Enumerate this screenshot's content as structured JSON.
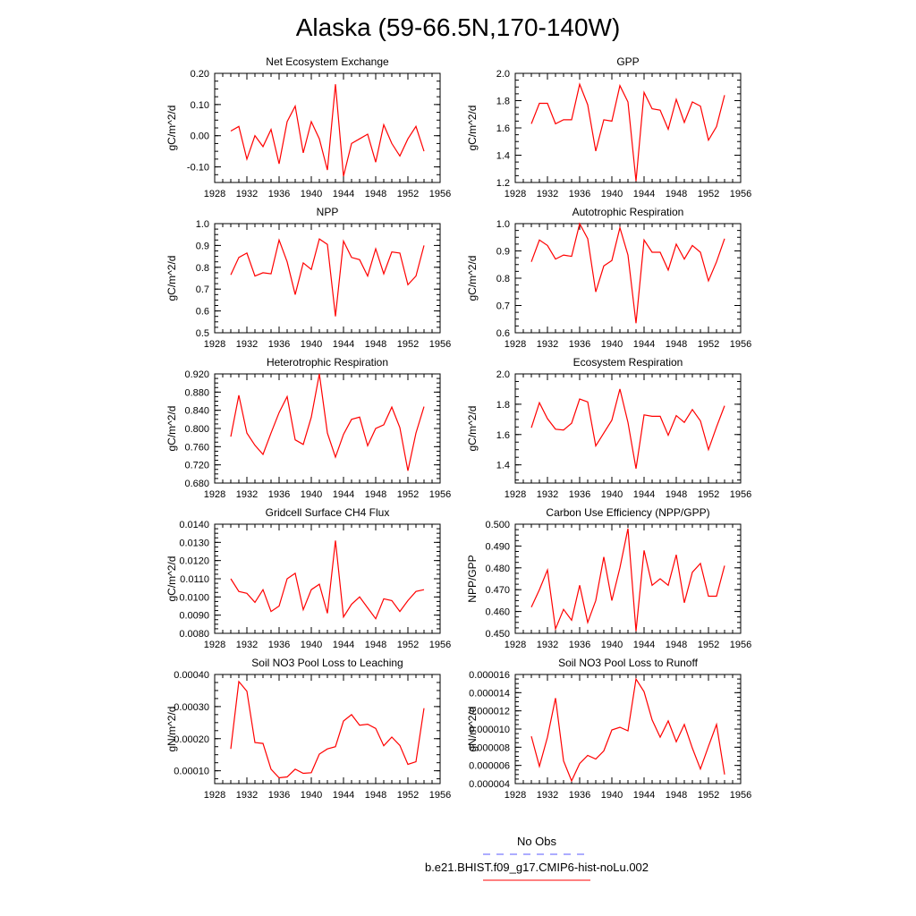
{
  "title": "Alaska (59-66.5N,170-140W)",
  "colors": {
    "model": "#ff0000",
    "obs": "#5a5aff",
    "axis": "#000000"
  },
  "legend": {
    "obs_label": "No Obs",
    "model_label": "b.e21.BHIST.f09_g17.CMIP6-hist-noLu.002"
  },
  "chart_data": [
    {
      "type": "line",
      "title": "Net Ecosystem Exchange",
      "ylabel": "gC/m^2/d",
      "xlim": [
        1928,
        1956
      ],
      "ylim": [
        -0.15,
        0.2
      ],
      "xticks": [
        1928,
        1932,
        1936,
        1940,
        1944,
        1948,
        1952,
        1956
      ],
      "yticks": [
        -0.1,
        0.0,
        0.1,
        0.2
      ],
      "ytick_labels": [
        "-0.10",
        "0.00",
        "0.10",
        "0.20"
      ],
      "x": [
        1930,
        1931,
        1932,
        1933,
        1934,
        1935,
        1936,
        1937,
        1938,
        1939,
        1940,
        1941,
        1942,
        1943,
        1944,
        1945,
        1946,
        1947,
        1948,
        1949,
        1950,
        1951,
        1952,
        1953,
        1954
      ],
      "series": [
        {
          "values": [
            0.015,
            0.03,
            -0.075,
            0.0,
            -0.035,
            0.02,
            -0.09,
            0.045,
            0.095,
            -0.055,
            0.045,
            -0.01,
            -0.11,
            0.165,
            -0.13,
            -0.025,
            -0.01,
            0.005,
            -0.085,
            0.035,
            -0.025,
            -0.065,
            -0.01,
            0.03,
            -0.05
          ]
        }
      ]
    },
    {
      "type": "line",
      "title": "GPP",
      "ylabel": "gC/m^2/d",
      "xlim": [
        1928,
        1956
      ],
      "ylim": [
        1.2,
        2.0
      ],
      "xticks": [
        1928,
        1932,
        1936,
        1940,
        1944,
        1948,
        1952,
        1956
      ],
      "yticks": [
        1.2,
        1.4,
        1.6,
        1.8,
        2.0
      ],
      "ytick_labels": [
        "1.2",
        "1.4",
        "1.6",
        "1.8",
        "2.0"
      ],
      "x": [
        1930,
        1931,
        1932,
        1933,
        1934,
        1935,
        1936,
        1937,
        1938,
        1939,
        1940,
        1941,
        1942,
        1943,
        1944,
        1945,
        1946,
        1947,
        1948,
        1949,
        1950,
        1951,
        1952,
        1953,
        1954
      ],
      "series": [
        {
          "values": [
            1.63,
            1.78,
            1.78,
            1.63,
            1.66,
            1.66,
            1.92,
            1.77,
            1.43,
            1.66,
            1.65,
            1.91,
            1.79,
            1.21,
            1.86,
            1.74,
            1.73,
            1.59,
            1.81,
            1.64,
            1.79,
            1.76,
            1.51,
            1.61,
            1.84
          ]
        }
      ]
    },
    {
      "type": "line",
      "title": "NPP",
      "ylabel": "gC/m^2/d",
      "xlim": [
        1928,
        1956
      ],
      "ylim": [
        0.5,
        1.0
      ],
      "xticks": [
        1928,
        1932,
        1936,
        1940,
        1944,
        1948,
        1952,
        1956
      ],
      "yticks": [
        0.5,
        0.6,
        0.7,
        0.8,
        0.9,
        1.0
      ],
      "ytick_labels": [
        "0.5",
        "0.6",
        "0.7",
        "0.8",
        "0.9",
        "1.0"
      ],
      "x": [
        1930,
        1931,
        1932,
        1933,
        1934,
        1935,
        1936,
        1937,
        1938,
        1939,
        1940,
        1941,
        1942,
        1943,
        1944,
        1945,
        1946,
        1947,
        1948,
        1949,
        1950,
        1951,
        1952,
        1953,
        1954
      ],
      "series": [
        {
          "values": [
            0.765,
            0.845,
            0.865,
            0.76,
            0.775,
            0.77,
            0.925,
            0.825,
            0.675,
            0.82,
            0.79,
            0.93,
            0.905,
            0.575,
            0.92,
            0.845,
            0.835,
            0.76,
            0.885,
            0.77,
            0.87,
            0.865,
            0.72,
            0.76,
            0.9
          ]
        }
      ]
    },
    {
      "type": "line",
      "title": "Autotrophic Respiration",
      "ylabel": "gC/m^2/d",
      "xlim": [
        1928,
        1956
      ],
      "ylim": [
        0.6,
        1.0
      ],
      "xticks": [
        1928,
        1932,
        1936,
        1940,
        1944,
        1948,
        1952,
        1956
      ],
      "yticks": [
        0.6,
        0.7,
        0.8,
        0.9,
        1.0
      ],
      "ytick_labels": [
        "0.6",
        "0.7",
        "0.8",
        "0.9",
        "1.0"
      ],
      "x": [
        1930,
        1931,
        1932,
        1933,
        1934,
        1935,
        1936,
        1937,
        1938,
        1939,
        1940,
        1941,
        1942,
        1943,
        1944,
        1945,
        1946,
        1947,
        1948,
        1949,
        1950,
        1951,
        1952,
        1953,
        1954
      ],
      "series": [
        {
          "values": [
            0.86,
            0.94,
            0.92,
            0.87,
            0.885,
            0.88,
            1.0,
            0.945,
            0.75,
            0.845,
            0.865,
            0.985,
            0.885,
            0.635,
            0.94,
            0.895,
            0.895,
            0.83,
            0.925,
            0.87,
            0.92,
            0.895,
            0.79,
            0.86,
            0.945
          ]
        }
      ]
    },
    {
      "type": "line",
      "title": "Heterotrophic Respiration",
      "ylabel": "gC/m^2/d",
      "xlim": [
        1928,
        1956
      ],
      "ylim": [
        0.68,
        0.92
      ],
      "xticks": [
        1928,
        1932,
        1936,
        1940,
        1944,
        1948,
        1952,
        1956
      ],
      "yticks": [
        0.68,
        0.72,
        0.76,
        0.8,
        0.84,
        0.88,
        0.92
      ],
      "ytick_labels": [
        "0.680",
        "0.720",
        "0.760",
        "0.800",
        "0.840",
        "0.880",
        "0.920"
      ],
      "x": [
        1930,
        1931,
        1932,
        1933,
        1934,
        1935,
        1936,
        1937,
        1938,
        1939,
        1940,
        1941,
        1942,
        1943,
        1944,
        1945,
        1946,
        1947,
        1948,
        1949,
        1950,
        1951,
        1952,
        1953,
        1954
      ],
      "series": [
        {
          "values": [
            0.782,
            0.873,
            0.79,
            0.763,
            0.743,
            0.79,
            0.835,
            0.87,
            0.775,
            0.765,
            0.825,
            0.92,
            0.79,
            0.737,
            0.787,
            0.82,
            0.825,
            0.762,
            0.8,
            0.808,
            0.847,
            0.802,
            0.707,
            0.79,
            0.848
          ]
        }
      ]
    },
    {
      "type": "line",
      "title": "Ecosystem Respiration",
      "ylabel": "gC/m^2/d",
      "xlim": [
        1928,
        1956
      ],
      "ylim": [
        1.28,
        2.0
      ],
      "xticks": [
        1928,
        1932,
        1936,
        1940,
        1944,
        1948,
        1952,
        1956
      ],
      "yticks": [
        1.4,
        1.6,
        1.8,
        2.0
      ],
      "ytick_labels": [
        "1.4",
        "1.6",
        "1.8",
        "2.0"
      ],
      "x": [
        1930,
        1931,
        1932,
        1933,
        1934,
        1935,
        1936,
        1937,
        1938,
        1939,
        1940,
        1941,
        1942,
        1943,
        1944,
        1945,
        1946,
        1947,
        1948,
        1949,
        1950,
        1951,
        1952,
        1953,
        1954
      ],
      "series": [
        {
          "values": [
            1.645,
            1.81,
            1.705,
            1.635,
            1.63,
            1.675,
            1.835,
            1.815,
            1.525,
            1.61,
            1.695,
            1.9,
            1.68,
            1.375,
            1.73,
            1.72,
            1.72,
            1.595,
            1.725,
            1.68,
            1.765,
            1.69,
            1.5,
            1.65,
            1.79
          ]
        }
      ]
    },
    {
      "type": "line",
      "title": "Gridcell Surface CH4 Flux",
      "ylabel": "gC/m^2/d",
      "xlim": [
        1928,
        1956
      ],
      "ylim": [
        0.008,
        0.014
      ],
      "xticks": [
        1928,
        1932,
        1936,
        1940,
        1944,
        1948,
        1952,
        1956
      ],
      "yticks": [
        0.008,
        0.009,
        0.01,
        0.011,
        0.012,
        0.013,
        0.014
      ],
      "ytick_labels": [
        "0.0080",
        "0.0090",
        "0.0100",
        "0.0110",
        "0.0120",
        "0.0130",
        "0.0140"
      ],
      "x": [
        1930,
        1931,
        1932,
        1933,
        1934,
        1935,
        1936,
        1937,
        1938,
        1939,
        1940,
        1941,
        1942,
        1943,
        1944,
        1945,
        1946,
        1947,
        1948,
        1949,
        1950,
        1951,
        1952,
        1953,
        1954
      ],
      "series": [
        {
          "values": [
            0.011,
            0.0103,
            0.0102,
            0.0097,
            0.0104,
            0.0092,
            0.0095,
            0.011,
            0.0113,
            0.0093,
            0.0104,
            0.0107,
            0.0091,
            0.0131,
            0.0089,
            0.0096,
            0.01,
            0.0094,
            0.0088,
            0.0099,
            0.0098,
            0.0092,
            0.0098,
            0.0103,
            0.0104
          ]
        }
      ]
    },
    {
      "type": "line",
      "title": "Carbon Use Efficiency (NPP/GPP)",
      "ylabel": "NPP/GPP",
      "xlim": [
        1928,
        1956
      ],
      "ylim": [
        0.45,
        0.5
      ],
      "xticks": [
        1928,
        1932,
        1936,
        1940,
        1944,
        1948,
        1952,
        1956
      ],
      "yticks": [
        0.45,
        0.46,
        0.47,
        0.48,
        0.49,
        0.5
      ],
      "ytick_labels": [
        "0.450",
        "0.460",
        "0.470",
        "0.480",
        "0.490",
        "0.500"
      ],
      "x": [
        1930,
        1931,
        1932,
        1933,
        1934,
        1935,
        1936,
        1937,
        1938,
        1939,
        1940,
        1941,
        1942,
        1943,
        1944,
        1945,
        1946,
        1947,
        1948,
        1949,
        1950,
        1951,
        1952,
        1953,
        1954
      ],
      "series": [
        {
          "values": [
            0.462,
            0.47,
            0.479,
            0.452,
            0.461,
            0.456,
            0.472,
            0.455,
            0.465,
            0.485,
            0.465,
            0.48,
            0.498,
            0.451,
            0.488,
            0.472,
            0.475,
            0.472,
            0.486,
            0.464,
            0.478,
            0.482,
            0.467,
            0.467,
            0.481
          ]
        }
      ]
    },
    {
      "type": "line",
      "title": "Soil NO3 Pool Loss to Leaching",
      "ylabel": "gN/m^2/d",
      "xlim": [
        1928,
        1956
      ],
      "ylim": [
        6e-05,
        0.0004
      ],
      "xticks": [
        1928,
        1932,
        1936,
        1940,
        1944,
        1948,
        1952,
        1956
      ],
      "yticks": [
        0.0001,
        0.0002,
        0.0003,
        0.0004
      ],
      "ytick_labels": [
        "0.00010",
        "0.00020",
        "0.00030",
        "0.00040"
      ],
      "x": [
        1930,
        1931,
        1932,
        1933,
        1934,
        1935,
        1936,
        1937,
        1938,
        1939,
        1940,
        1941,
        1942,
        1943,
        1944,
        1945,
        1946,
        1947,
        1948,
        1949,
        1950,
        1951,
        1952,
        1953,
        1954
      ],
      "series": [
        {
          "values": [
            0.000168,
            0.000378,
            0.000348,
            0.000188,
            0.000185,
            0.000105,
            7.8e-05,
            8.1e-05,
            0.000105,
            9.2e-05,
            9.4e-05,
            0.000152,
            0.000168,
            0.000175,
            0.000255,
            0.000275,
            0.000242,
            0.000245,
            0.000232,
            0.000178,
            0.000205,
            0.000179,
            0.00012,
            0.000128,
            0.000295
          ]
        }
      ]
    },
    {
      "type": "line",
      "title": "Soil NO3 Pool Loss to Runoff",
      "ylabel": "gN/m^2/d",
      "xlim": [
        1928,
        1956
      ],
      "ylim": [
        4e-06,
        1.6e-05
      ],
      "xticks": [
        1928,
        1932,
        1936,
        1940,
        1944,
        1948,
        1952,
        1956
      ],
      "yticks": [
        4e-06,
        6e-06,
        8e-06,
        1e-05,
        1.2e-05,
        1.4e-05,
        1.6e-05
      ],
      "ytick_labels": [
        "0.000004",
        "0.000006",
        "0.000008",
        "0.000010",
        "0.000012",
        "0.000014",
        "0.000016"
      ],
      "x": [
        1930,
        1931,
        1932,
        1933,
        1934,
        1935,
        1936,
        1937,
        1938,
        1939,
        1940,
        1941,
        1942,
        1943,
        1944,
        1945,
        1946,
        1947,
        1948,
        1949,
        1950,
        1951,
        1952,
        1953,
        1954
      ],
      "series": [
        {
          "values": [
            9.2e-06,
            5.9e-06,
            9.1e-06,
            1.34e-05,
            6.5e-06,
            4.3e-06,
            6.2e-06,
            7.1e-06,
            6.7e-06,
            7.6e-06,
            9.9e-06,
            1.02e-05,
            9.8e-06,
            1.55e-05,
            1.41e-05,
            1.1e-05,
            9.1e-06,
            1.09e-05,
            8.6e-06,
            1.05e-05,
            7.9e-06,
            5.6e-06,
            8.1e-06,
            1.05e-05,
            5e-06
          ]
        }
      ]
    }
  ]
}
